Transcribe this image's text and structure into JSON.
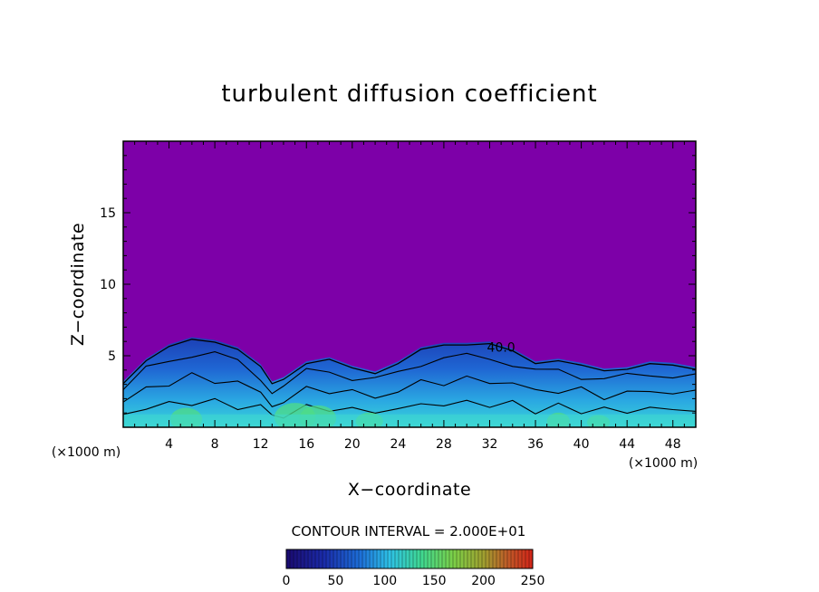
{
  "chart_data": {
    "type": "heatmap",
    "title": "turbulent diffusion coefficient",
    "xlabel": "X−coordinate",
    "ylabel": "Z−coordinate",
    "x_unit": "(×1000 m)",
    "y_unit": "(×1000 m)",
    "xlim": [
      0,
      50
    ],
    "ylim": [
      0,
      20
    ],
    "x_ticks": [
      4,
      8,
      12,
      16,
      20,
      24,
      28,
      32,
      36,
      40,
      44,
      48
    ],
    "y_ticks": [
      5,
      10,
      15
    ],
    "contour_interval_label": "CONTOUR INTERVAL = 2.000E+01",
    "colorbar": {
      "min": 0,
      "max": 250,
      "ticks": [
        0,
        50,
        100,
        150,
        200,
        250
      ]
    },
    "background_value": 0,
    "contour_label": "40.0",
    "boundary_layer_top": [
      {
        "x": 0,
        "z": 3.2
      },
      {
        "x": 2,
        "z": 4.8
      },
      {
        "x": 4,
        "z": 5.8
      },
      {
        "x": 6,
        "z": 6.3
      },
      {
        "x": 8,
        "z": 6.1
      },
      {
        "x": 10,
        "z": 5.6
      },
      {
        "x": 12,
        "z": 4.4
      },
      {
        "x": 13,
        "z": 3.2
      },
      {
        "x": 14,
        "z": 3.5
      },
      {
        "x": 16,
        "z": 4.6
      },
      {
        "x": 18,
        "z": 4.9
      },
      {
        "x": 20,
        "z": 4.3
      },
      {
        "x": 22,
        "z": 3.9
      },
      {
        "x": 24,
        "z": 4.6
      },
      {
        "x": 26,
        "z": 5.6
      },
      {
        "x": 28,
        "z": 5.9
      },
      {
        "x": 30,
        "z": 5.9
      },
      {
        "x": 32,
        "z": 6.0
      },
      {
        "x": 34,
        "z": 5.5
      },
      {
        "x": 36,
        "z": 4.6
      },
      {
        "x": 38,
        "z": 4.8
      },
      {
        "x": 40,
        "z": 4.5
      },
      {
        "x": 42,
        "z": 4.1
      },
      {
        "x": 44,
        "z": 4.2
      },
      {
        "x": 46,
        "z": 4.6
      },
      {
        "x": 48,
        "z": 4.5
      },
      {
        "x": 50,
        "z": 4.2
      }
    ],
    "grid": false,
    "legend": "bottom-center"
  }
}
